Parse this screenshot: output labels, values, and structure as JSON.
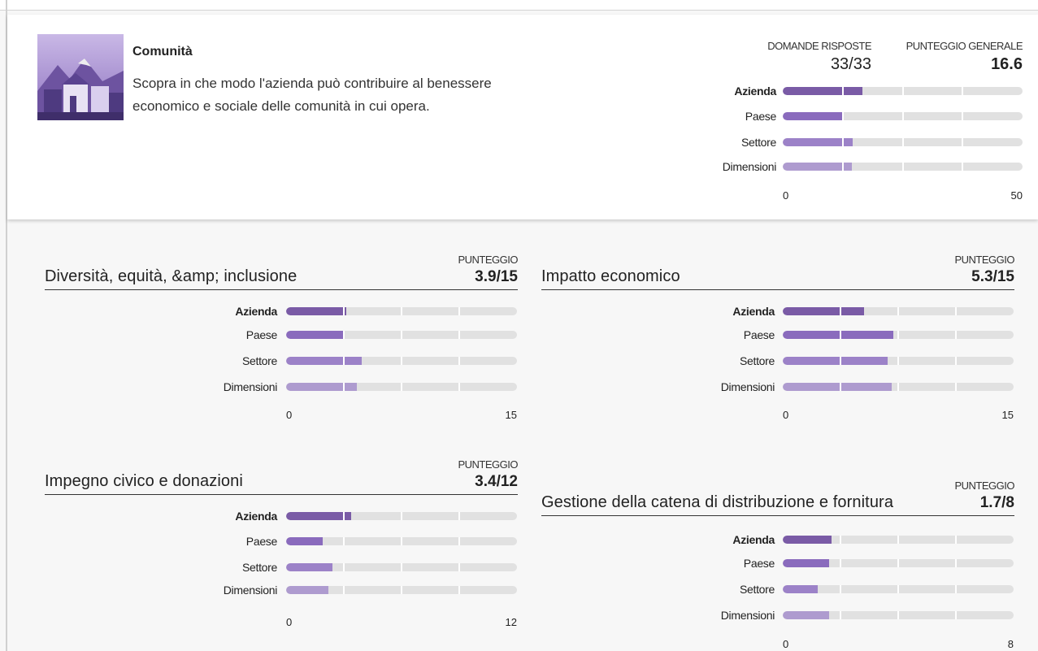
{
  "header": {
    "title": "Comunità",
    "description": "Scopra in che modo l'azienda può contribuire al benessere economico e sociale delle comunità in cui opera.",
    "answered_label": "DOMANDE RISPOSTE",
    "answered": "33/33",
    "score_label": "PUNTEGGIO GENERALE",
    "score": "16.6"
  },
  "overview": {
    "rows": [
      {
        "label": "Azienda",
        "value": 16.6,
        "color": "#7a5ba6"
      },
      {
        "label": "Paese",
        "value": 12.7,
        "color": "#8a6bbd"
      },
      {
        "label": "Settore",
        "value": 14.6,
        "color": "#9c82c8"
      },
      {
        "label": "Dimensioni",
        "value": 14.4,
        "color": "#ae9bcf"
      }
    ],
    "xlim": [
      0,
      50
    ],
    "xticks": [
      0,
      50
    ]
  },
  "sections": [
    {
      "title": "Diversità, equità, &amp; inclusione",
      "score_label": "PUNTEGGIO",
      "score": "3.9/15",
      "rows": [
        {
          "label": "Azienda",
          "value": 3.9,
          "color": "#7a5ba6"
        },
        {
          "label": "Paese",
          "value": 3.7,
          "color": "#8a6bbd"
        },
        {
          "label": "Settore",
          "value": 4.9,
          "color": "#9c82c8"
        },
        {
          "label": "Dimensioni",
          "value": 4.6,
          "color": "#ae9bcf"
        }
      ],
      "xlim": [
        0,
        15
      ],
      "xticks": [
        0,
        15
      ]
    },
    {
      "title": "Impatto economico",
      "score_label": "PUNTEGGIO",
      "score": "5.3/15",
      "rows": [
        {
          "label": "Azienda",
          "value": 5.3,
          "color": "#7a5ba6"
        },
        {
          "label": "Paese",
          "value": 7.2,
          "color": "#8a6bbd"
        },
        {
          "label": "Settore",
          "value": 6.8,
          "color": "#9c82c8"
        },
        {
          "label": "Dimensioni",
          "value": 7.1,
          "color": "#ae9bcf"
        }
      ],
      "xlim": [
        0,
        15
      ],
      "xticks": [
        0,
        15
      ]
    },
    {
      "title": "Impegno civico e donazioni",
      "score_label": "PUNTEGGIO",
      "score": "3.4/12",
      "rows": [
        {
          "label": "Azienda",
          "value": 3.4,
          "color": "#7a5ba6"
        },
        {
          "label": "Paese",
          "value": 1.9,
          "color": "#8a6bbd"
        },
        {
          "label": "Settore",
          "value": 2.4,
          "color": "#9c82c8"
        },
        {
          "label": "Dimensioni",
          "value": 2.2,
          "color": "#ae9bcf"
        }
      ],
      "xlim": [
        0,
        12
      ],
      "xticks": [
        0,
        12
      ]
    },
    {
      "title": "Gestione della catena di distribuzione e fornitura",
      "score_label": "PUNTEGGIO",
      "score": "1.7/8",
      "rows": [
        {
          "label": "Azienda",
          "value": 1.7,
          "color": "#7a5ba6"
        },
        {
          "label": "Paese",
          "value": 1.6,
          "color": "#8a6bbd"
        },
        {
          "label": "Settore",
          "value": 1.2,
          "color": "#9c82c8"
        },
        {
          "label": "Dimensioni",
          "value": 1.6,
          "color": "#ae9bcf"
        }
      ],
      "xlim": [
        0,
        8
      ],
      "xticks": [
        0,
        8
      ]
    }
  ]
}
